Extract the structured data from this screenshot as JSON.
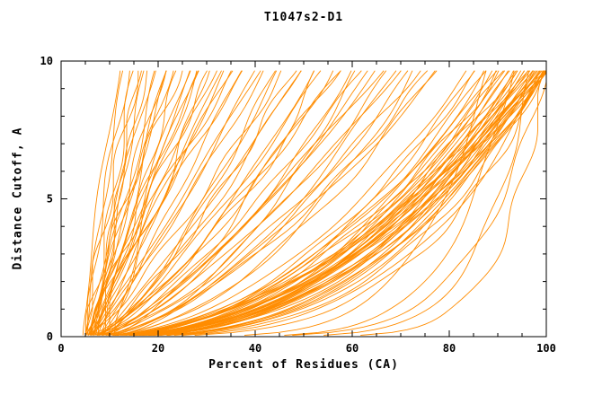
{
  "chart_data": {
    "type": "line",
    "title": "T1047s2-D1",
    "xlabel": "Percent of Residues (CA)",
    "ylabel": "Distance Cutoff, A",
    "xlim": [
      0,
      100
    ],
    "ylim": [
      0,
      10
    ],
    "xticks": [
      0,
      20,
      40,
      60,
      80,
      100
    ],
    "yticks": [
      0,
      5,
      10
    ],
    "x_minor_step": 5,
    "y_minor_step": 1,
    "y_data_max": 9.7,
    "series_color": "#ff8c00",
    "axis_color": "#000000",
    "background_color": "#ffffff",
    "grid": false,
    "legend": "none",
    "series_description": "Overlaid per-model GDT curves; each curve defined by [x0_percent_at_0A, x1_percent_at_9.7A, shape_exponent_q] with x(y) = x0 + (x1-x0)*(y/9.7)^q, clipped at 100%",
    "curves": [
      [
        4.5,
        12,
        1.3
      ],
      [
        5,
        13,
        1.1
      ],
      [
        5.5,
        14,
        1.4
      ],
      [
        6,
        15,
        1.0
      ],
      [
        5,
        16,
        1.2
      ],
      [
        6.5,
        17,
        0.9
      ],
      [
        7,
        18,
        1.3
      ],
      [
        5,
        19,
        1.1
      ],
      [
        6,
        20,
        1.0
      ],
      [
        7.5,
        21,
        1.2
      ],
      [
        5.5,
        22,
        0.95
      ],
      [
        6,
        23,
        1.15
      ],
      [
        8,
        24,
        1.0
      ],
      [
        5,
        25,
        1.3
      ],
      [
        6.5,
        26,
        0.9
      ],
      [
        7,
        27,
        1.1
      ],
      [
        5.5,
        28,
        1.0
      ],
      [
        6,
        29,
        1.2
      ],
      [
        8.5,
        30,
        0.85
      ],
      [
        5,
        31,
        1.05
      ],
      [
        7,
        32,
        1.15
      ],
      [
        6,
        33,
        0.9
      ],
      [
        7.5,
        34,
        1.1
      ],
      [
        5.5,
        35,
        1.0
      ],
      [
        6,
        36,
        1.2
      ],
      [
        8,
        37,
        0.95
      ],
      [
        5,
        38,
        1.1
      ],
      [
        9,
        16,
        1.5
      ],
      [
        10,
        22,
        1.35
      ],
      [
        11,
        28,
        1.25
      ],
      [
        5,
        40,
        0.8
      ],
      [
        6,
        42,
        0.9
      ],
      [
        7,
        44,
        0.7
      ],
      [
        5.5,
        46,
        0.85
      ],
      [
        6.5,
        48,
        0.75
      ],
      [
        8,
        50,
        0.9
      ],
      [
        5,
        52,
        0.65
      ],
      [
        7,
        54,
        0.8
      ],
      [
        6,
        56,
        0.7
      ],
      [
        8.5,
        58,
        0.85
      ],
      [
        5.5,
        60,
        0.6
      ],
      [
        7.5,
        62,
        0.75
      ],
      [
        6,
        64,
        0.68
      ],
      [
        9,
        66,
        0.8
      ],
      [
        5,
        68,
        0.62
      ],
      [
        7,
        70,
        0.72
      ],
      [
        6.5,
        72,
        0.58
      ],
      [
        8,
        74,
        0.7
      ],
      [
        5.5,
        76,
        0.6
      ],
      [
        7,
        78,
        0.66
      ],
      [
        6,
        41,
        0.95
      ],
      [
        9.5,
        45,
        0.85
      ],
      [
        5,
        49,
        0.7
      ],
      [
        8,
        53,
        0.6
      ],
      [
        6.5,
        57,
        0.75
      ],
      [
        7.5,
        61,
        0.55
      ],
      [
        5,
        65,
        0.68
      ],
      [
        9,
        69,
        0.6
      ],
      [
        6,
        73,
        0.5
      ],
      [
        7,
        77,
        0.55
      ],
      [
        5,
        84,
        0.5
      ],
      [
        6,
        85,
        0.45
      ],
      [
        7,
        86,
        0.5
      ],
      [
        5.5,
        87,
        0.4
      ],
      [
        6.5,
        88,
        0.48
      ],
      [
        8,
        89,
        0.42
      ],
      [
        5,
        90,
        0.5
      ],
      [
        7,
        90,
        0.38
      ],
      [
        6,
        91,
        0.45
      ],
      [
        8.5,
        91,
        0.5
      ],
      [
        5.5,
        92,
        0.4
      ],
      [
        7.5,
        92,
        0.46
      ],
      [
        6,
        93,
        0.36
      ],
      [
        9,
        93,
        0.44
      ],
      [
        5,
        94,
        0.5
      ],
      [
        7,
        94,
        0.4
      ],
      [
        6.5,
        95,
        0.46
      ],
      [
        8,
        95,
        0.35
      ],
      [
        5.5,
        95,
        0.42
      ],
      [
        7,
        96,
        0.48
      ],
      [
        6,
        96,
        0.38
      ],
      [
        9.5,
        96,
        0.44
      ],
      [
        5,
        97,
        0.5
      ],
      [
        8,
        97,
        0.4
      ],
      [
        6.5,
        97,
        0.45
      ],
      [
        7.5,
        98,
        0.35
      ],
      [
        5,
        98,
        0.42
      ],
      [
        9,
        98,
        0.48
      ],
      [
        6,
        98,
        0.38
      ],
      [
        7,
        99,
        0.44
      ],
      [
        5.5,
        99,
        0.5
      ],
      [
        8,
        99,
        0.4
      ],
      [
        6.5,
        99,
        0.34
      ],
      [
        7,
        100,
        0.46
      ],
      [
        5,
        100,
        0.4
      ],
      [
        8.5,
        100,
        0.5
      ],
      [
        6,
        100,
        0.36
      ],
      [
        9,
        100,
        0.44
      ],
      [
        5.5,
        100,
        0.3
      ],
      [
        7.5,
        100,
        0.48
      ],
      [
        6.5,
        100,
        0.42
      ],
      [
        8,
        100,
        0.38
      ],
      [
        5,
        100,
        0.52
      ],
      [
        7,
        100,
        0.33
      ],
      [
        6,
        100,
        0.28
      ],
      [
        6,
        88,
        0.18
      ],
      [
        7,
        93,
        0.15
      ],
      [
        5.5,
        97,
        0.12
      ],
      [
        8,
        100,
        0.16
      ],
      [
        6.5,
        100,
        0.1
      ]
    ]
  }
}
